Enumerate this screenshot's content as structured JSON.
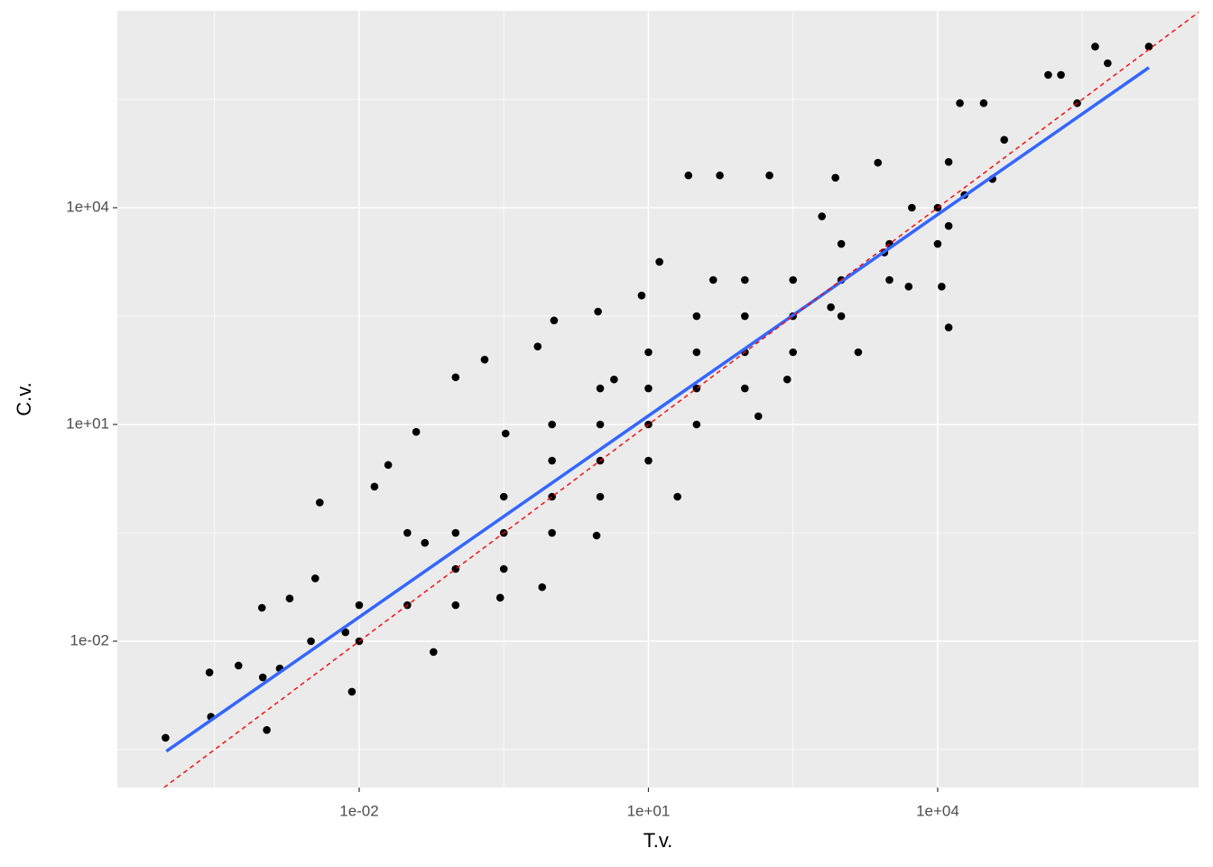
{
  "chart_data": {
    "type": "scatter",
    "x_label": "T.v.",
    "y_label": "C.v.",
    "log_x": true,
    "log_y": true,
    "grid": true,
    "xlim": [
      3.1e-05,
      5080000.0
    ],
    "ylim": [
      9.44e-05,
      5310000.0
    ],
    "xticks": [
      {
        "value": 0.01,
        "label": "1e-02"
      },
      {
        "value": 10,
        "label": "1e+01"
      },
      {
        "value": 10000,
        "label": "1e+04"
      }
    ],
    "yticks": [
      {
        "value": 0.01,
        "label": "1e-02"
      },
      {
        "value": 10,
        "label": "1e+01"
      },
      {
        "value": 10000,
        "label": "1e+04"
      }
    ],
    "x_minor_breaks": [
      0.000316,
      0.316,
      316,
      316000
    ],
    "y_minor_breaks": [
      0.000316,
      0.316,
      316,
      316000
    ],
    "point_color": "#000000",
    "x": [
      9.8e-05,
      0.00028,
      0.00029,
      0.00056,
      0.00098,
      0.0011,
      0.0019,
      0.0039,
      0.0084,
      0.0072,
      0.0144,
      0.02,
      0.039,
      0.1,
      0.2,
      0.71,
      1.05,
      3.0,
      8.5,
      13,
      26,
      55,
      180,
      870,
      2400,
      13000,
      17000,
      30000,
      49000,
      140000,
      190000,
      430000,
      1550000,
      580000,
      280000,
      13000,
      11000,
      5000,
      1500,
      275,
      20,
      2.9,
      0.79,
      0.059,
      0.29,
      138,
      780,
      2800,
      13000,
      19000,
      37000,
      5400,
      630,
      47,
      4.4,
      0.33,
      0.048,
      0.0035,
      0.0015,
      0.0316,
      0.0316,
      0.1,
      0.1,
      0.1,
      0.316,
      0.316,
      0.316,
      1,
      1,
      1,
      1,
      3.16,
      3.16,
      3.16,
      3.16,
      10,
      10,
      10,
      10,
      31.6,
      31.6,
      31.6,
      31.6,
      100,
      100,
      100,
      100,
      316,
      316,
      316,
      1000,
      1000,
      1000,
      3160,
      3160,
      10000,
      10000,
      0.01,
      0.01,
      0.00316,
      0.001
    ],
    "y": [
      0.00046,
      0.0037,
      0.0009,
      0.0046,
      0.029,
      0.00059,
      0.039,
      0.83,
      0.002,
      0.0133,
      1.38,
      2.75,
      7.9,
      45,
      79,
      120,
      275,
      365,
      610,
      1780,
      28000,
      28000,
      28000,
      26000,
      42000,
      43000,
      280000,
      280000,
      87000,
      690000,
      690000,
      1700000,
      1700000,
      1000000,
      280000,
      220,
      810,
      810,
      100,
      42,
      1,
      0.29,
      0.056,
      0.0071,
      0.04,
      13,
      420,
      2400,
      5600,
      15000,
      25000,
      10000,
      7600,
      1000,
      42,
      7.5,
      0.23,
      0.074,
      0.0042,
      0.316,
      0.0316,
      0.316,
      0.1,
      0.0316,
      1,
      0.316,
      0.1,
      3.16,
      1,
      0.316,
      10,
      10,
      3.16,
      31.6,
      1,
      10,
      31.6,
      100,
      3.16,
      31.6,
      100,
      10,
      316,
      100,
      316,
      31.6,
      1000,
      316,
      1000,
      100,
      1000,
      3160,
      316,
      3160,
      1000,
      10000,
      3160,
      0.0316,
      0.01,
      0.01,
      0.00316
    ],
    "fit_line": {
      "color": "#3366FF",
      "x": [
        0.0001,
        1550000.0
      ],
      "y": [
        0.0003,
        870000
      ]
    },
    "reference_line": {
      "color": "#FF0000",
      "dashed": true,
      "x": [
        9.44e-05,
        5080000.0
      ],
      "y": [
        9.44e-05,
        5080000.0
      ]
    }
  }
}
